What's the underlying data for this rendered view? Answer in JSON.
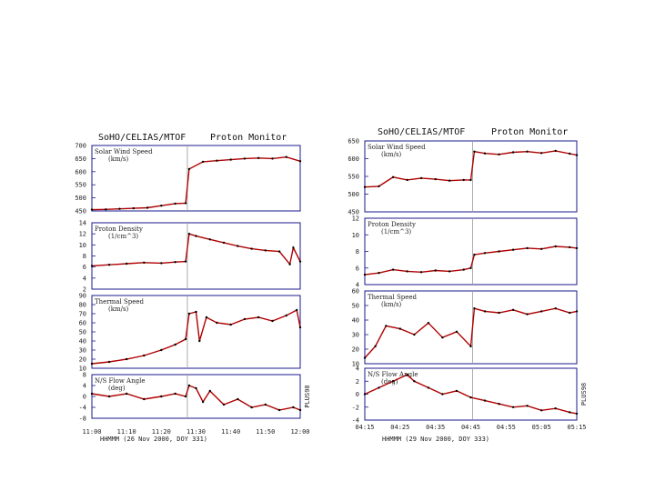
{
  "chart_data": [
    {
      "type": "line",
      "title": "SoHO/CELIAS/MTOF",
      "subtitle": "Proton Monitor",
      "xlabel": "HHMMM (26 Nov 2000, DOY 331)",
      "x_ticks": [
        "11:00",
        "11:10",
        "11:20",
        "11:30",
        "11:40",
        "11:50",
        "12:00"
      ],
      "shock_time": 11.45,
      "panels": [
        {
          "name": "speed",
          "label_lines": [
            "Solar Wind Speed",
            "(km/s)"
          ],
          "ylim": [
            450,
            700
          ],
          "y_ticks": [
            "700",
            "650",
            "600",
            "550",
            "500",
            "450"
          ],
          "x": [
            0,
            4,
            8,
            12,
            16,
            20,
            24,
            27,
            28,
            32,
            36,
            40,
            44,
            48,
            52,
            56,
            60
          ],
          "values": [
            455,
            456,
            458,
            460,
            462,
            470,
            478,
            480,
            610,
            638,
            642,
            646,
            650,
            652,
            650,
            656,
            640
          ]
        },
        {
          "name": "density",
          "label_lines": [
            "Proton Density",
            "(1/cm^3)"
          ],
          "ylim": [
            2,
            14
          ],
          "y_ticks": [
            "14",
            "12",
            "10",
            "8",
            "6",
            "4",
            "2"
          ],
          "x": [
            0,
            5,
            10,
            15,
            20,
            24,
            27,
            28,
            30,
            34,
            38,
            42,
            46,
            50,
            54,
            57,
            58,
            60
          ],
          "values": [
            6.2,
            6.4,
            6.6,
            6.8,
            6.7,
            6.9,
            7.0,
            12.0,
            11.6,
            11.0,
            10.4,
            9.8,
            9.3,
            9.0,
            8.8,
            6.5,
            9.5,
            7.0
          ]
        },
        {
          "name": "thermal",
          "label_lines": [
            "Thermal Speed",
            "(km/s)"
          ],
          "ylim": [
            10,
            90
          ],
          "y_ticks": [
            "90",
            "80",
            "70",
            "60",
            "50",
            "40",
            "30",
            "20",
            "10"
          ],
          "x": [
            0,
            5,
            10,
            15,
            20,
            24,
            27,
            28,
            30,
            31,
            33,
            36,
            40,
            44,
            48,
            52,
            56,
            59,
            60
          ],
          "values": [
            15,
            17,
            20,
            24,
            30,
            36,
            42,
            70,
            72,
            40,
            66,
            60,
            58,
            64,
            66,
            62,
            68,
            74,
            55
          ]
        },
        {
          "name": "flow-angle",
          "label_lines": [
            "N/S Flow Angle",
            "(deg)"
          ],
          "right_label": "PLUS98",
          "ylim": [
            -8,
            8
          ],
          "y_ticks": [
            "8",
            "4",
            "0",
            "-4",
            "-8"
          ],
          "x": [
            0,
            5,
            10,
            15,
            20,
            24,
            27,
            28,
            30,
            32,
            34,
            38,
            42,
            46,
            50,
            54,
            58,
            60
          ],
          "values": [
            1,
            0,
            1,
            -1,
            0,
            1,
            0,
            4,
            3,
            -2,
            2,
            -3,
            -1,
            -4,
            -3,
            -5,
            -4,
            -5
          ]
        }
      ]
    },
    {
      "type": "line",
      "title": "SoHO/CELIAS/MTOF",
      "subtitle": "Proton Monitor",
      "xlabel": "HHMMM (29 Nov 2000, DOY 333)",
      "x_ticks": [
        "04:15",
        "04:25",
        "04:35",
        "04:45",
        "04:55",
        "05:05",
        "05:15"
      ],
      "panels": [
        {
          "name": "speed",
          "label_lines": [
            "Solar Wind Speed",
            "(km/s)"
          ],
          "ylim": [
            450,
            650
          ],
          "y_ticks": [
            "650",
            "600",
            "550",
            "500",
            "450"
          ],
          "x": [
            0,
            4,
            8,
            12,
            16,
            20,
            24,
            28,
            30,
            31,
            34,
            38,
            42,
            46,
            50,
            54,
            58,
            60
          ],
          "values": [
            520,
            522,
            548,
            540,
            545,
            542,
            538,
            540,
            540,
            620,
            615,
            612,
            618,
            620,
            616,
            622,
            614,
            610
          ]
        },
        {
          "name": "density",
          "label_lines": [
            "Proton Density",
            "(1/cm^3)"
          ],
          "ylim": [
            4,
            12
          ],
          "y_ticks": [
            "12",
            "10",
            "8",
            "6",
            "4"
          ],
          "x": [
            0,
            4,
            8,
            12,
            16,
            20,
            24,
            28,
            30,
            31,
            34,
            38,
            42,
            46,
            50,
            54,
            58,
            60
          ],
          "values": [
            5.2,
            5.4,
            5.8,
            5.6,
            5.5,
            5.7,
            5.6,
            5.8,
            6.0,
            7.6,
            7.8,
            8.0,
            8.2,
            8.4,
            8.3,
            8.6,
            8.5,
            8.4
          ]
        },
        {
          "name": "thermal",
          "label_lines": [
            "Thermal Speed",
            "(km/s)"
          ],
          "ylim": [
            10,
            60
          ],
          "y_ticks": [
            "60",
            "50",
            "40",
            "30",
            "20",
            "10"
          ],
          "x": [
            0,
            3,
            6,
            10,
            14,
            18,
            22,
            26,
            30,
            31,
            34,
            38,
            42,
            46,
            50,
            54,
            58,
            60
          ],
          "values": [
            14,
            22,
            36,
            34,
            30,
            38,
            28,
            32,
            22,
            48,
            46,
            45,
            47,
            44,
            46,
            48,
            45,
            46
          ]
        },
        {
          "name": "flow-angle",
          "label_lines": [
            "N/S Flow Angle",
            "(deg)"
          ],
          "right_label": "PLUS98",
          "ylim": [
            -4,
            4
          ],
          "y_ticks": [
            "4",
            "2",
            "0",
            "-2",
            "-4"
          ],
          "x": [
            0,
            4,
            8,
            12,
            14,
            18,
            22,
            26,
            30,
            34,
            38,
            42,
            46,
            50,
            54,
            58,
            60
          ],
          "values": [
            0,
            1,
            2,
            3,
            2,
            1,
            0,
            0.5,
            -0.5,
            -1,
            -1.5,
            -2,
            -1.8,
            -2.5,
            -2.2,
            -2.8,
            -3
          ]
        }
      ]
    }
  ],
  "style": {
    "frame_color": "#1a1a8c",
    "data_color": "#b00000",
    "marker_color": "#000000"
  }
}
